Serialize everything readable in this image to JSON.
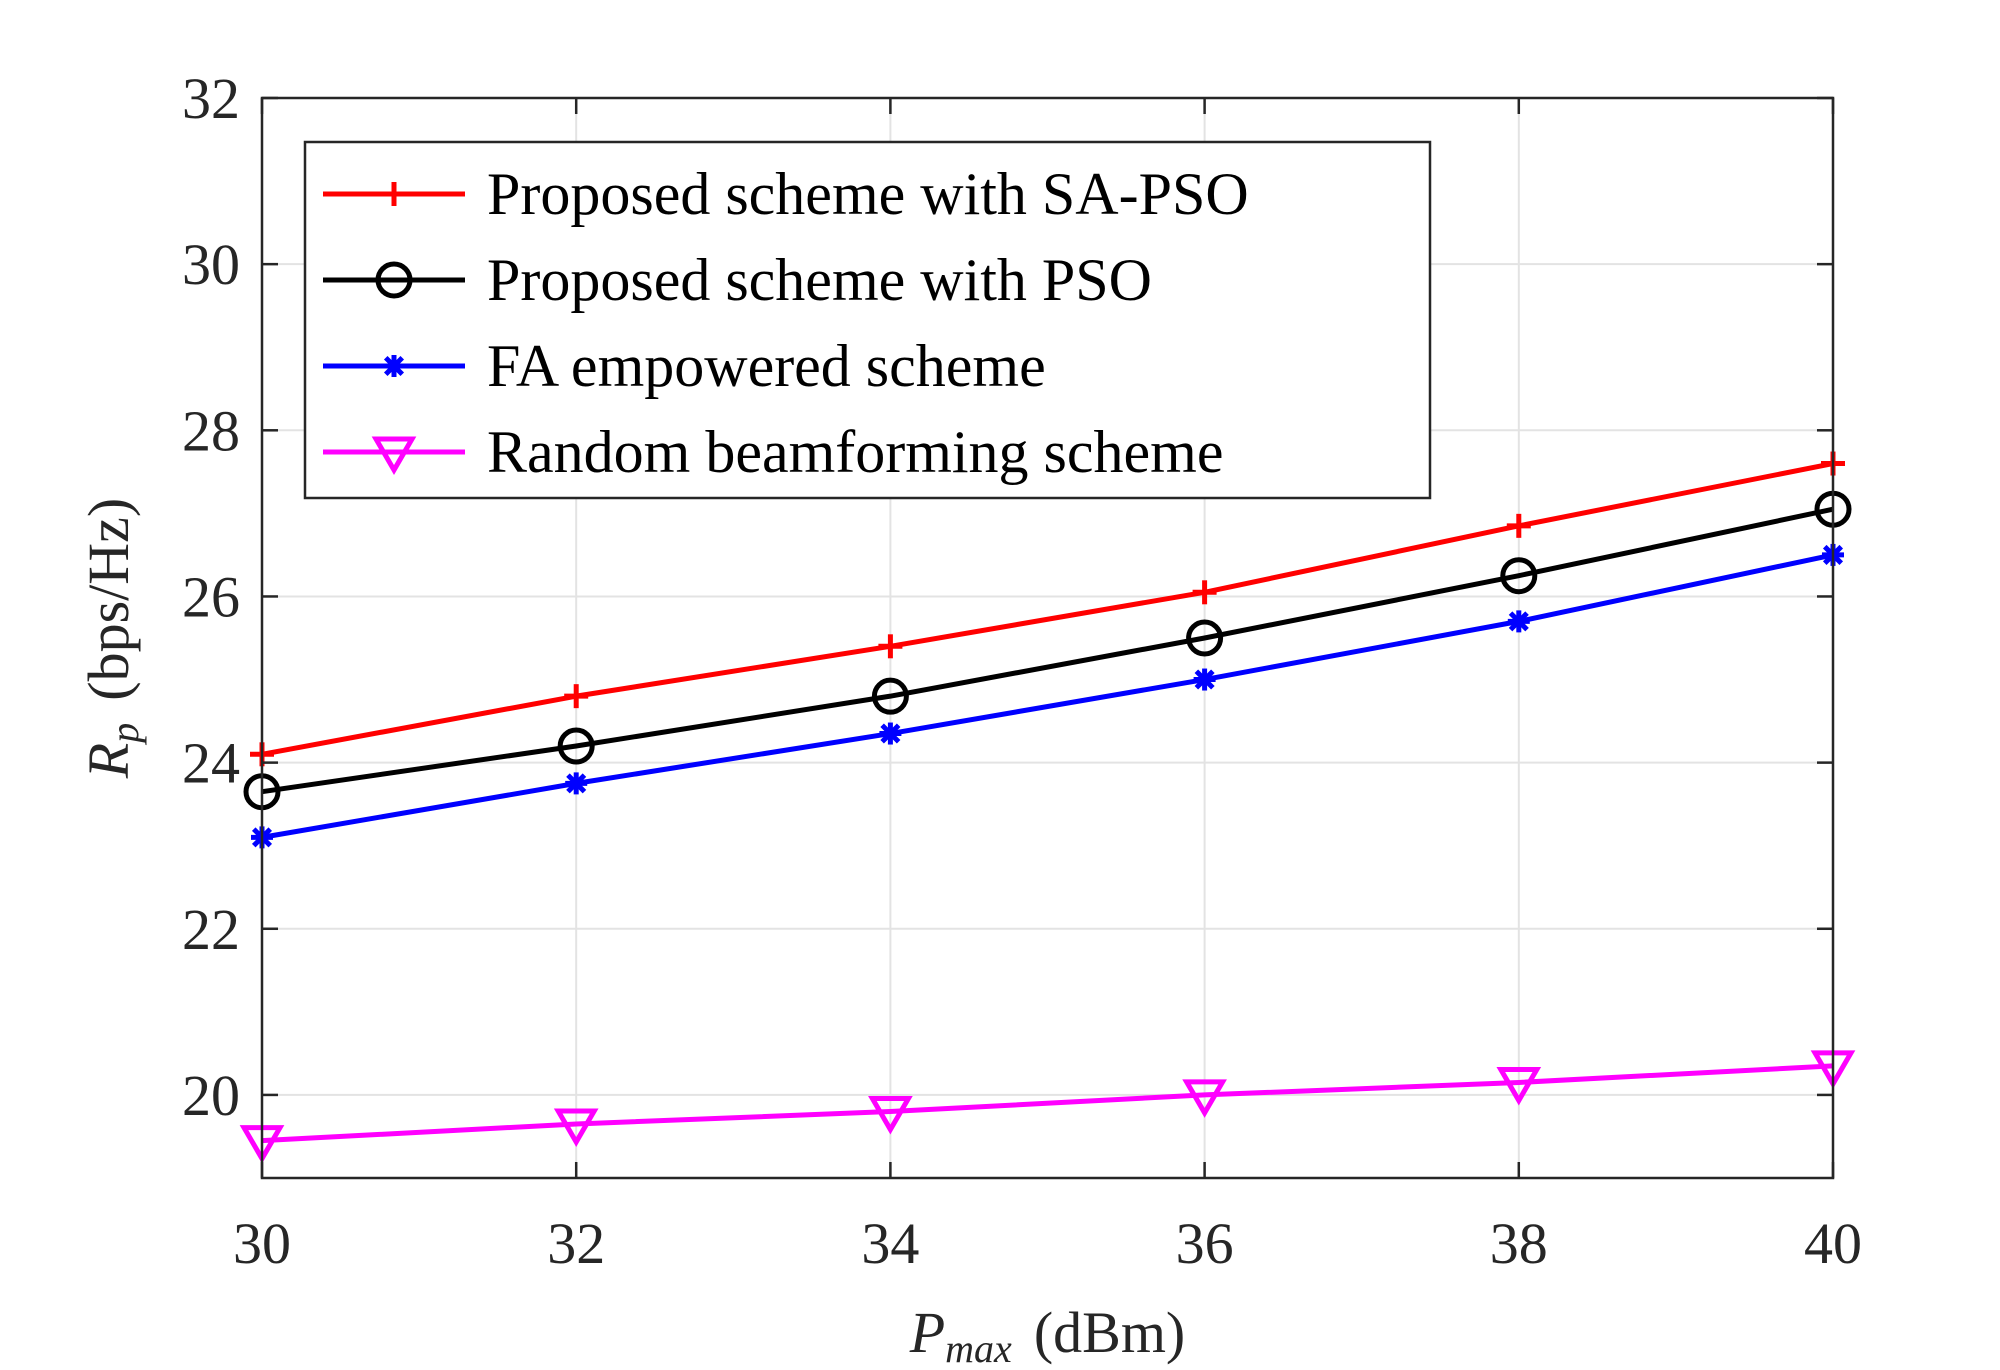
{
  "chart_data": {
    "type": "line",
    "x": [
      30,
      32,
      34,
      36,
      38,
      40
    ],
    "xlim": [
      30,
      40
    ],
    "ylim": [
      19,
      32
    ],
    "xticks": [
      "30",
      "32",
      "34",
      "36",
      "38",
      "40"
    ],
    "yticks": [
      "20",
      "22",
      "24",
      "26",
      "28",
      "30",
      "32"
    ],
    "xlabel": {
      "symbol": "P",
      "sub": "max",
      "unit": "(dBm)"
    },
    "ylabel": {
      "symbol": "R",
      "sub": "p",
      "unit": "(bps/Hz)"
    },
    "grid": true,
    "legend_position": "top-left",
    "series": [
      {
        "name": "Proposed scheme with SA-PSO",
        "color": "#ff0000",
        "marker": "plus",
        "values": [
          24.1,
          24.8,
          25.4,
          26.05,
          26.85,
          27.6
        ]
      },
      {
        "name": "Proposed scheme with PSO",
        "color": "#000000",
        "marker": "circle",
        "values": [
          23.65,
          24.2,
          24.8,
          25.5,
          26.25,
          27.05
        ]
      },
      {
        "name": "FA empowered scheme",
        "color": "#0000ff",
        "marker": "asterisk",
        "values": [
          23.1,
          23.75,
          24.35,
          25.0,
          25.7,
          26.5
        ]
      },
      {
        "name": "Random beamforming scheme",
        "color": "#ff00ff",
        "marker": "triangle-down",
        "values": [
          19.45,
          19.65,
          19.8,
          20.0,
          20.15,
          20.35
        ]
      }
    ]
  }
}
